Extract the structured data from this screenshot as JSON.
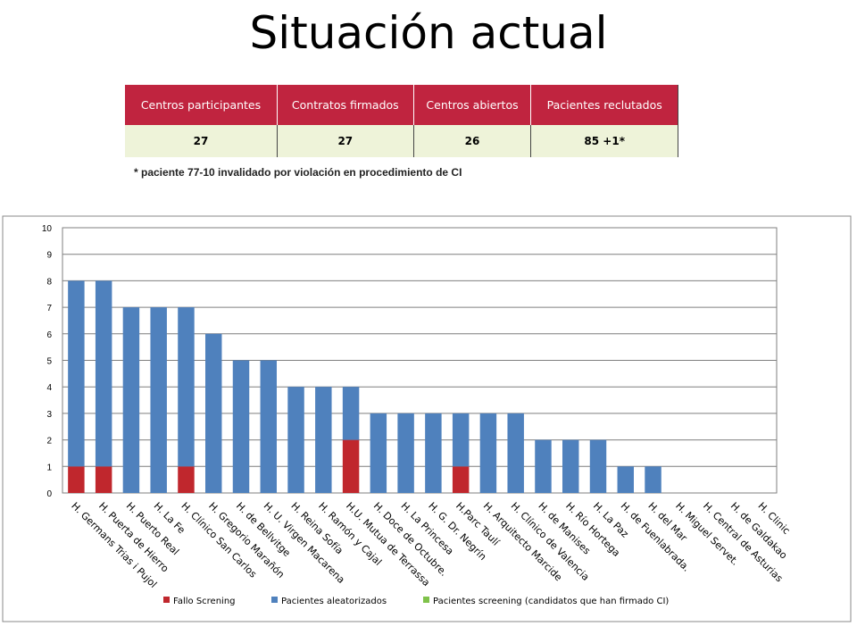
{
  "page": {
    "title": "Situación actual"
  },
  "summary_table": {
    "headers": [
      "Centros participantes",
      "Contratos firmados",
      "Centros abiertos",
      "Pacientes reclutados"
    ],
    "values": [
      "27",
      "27",
      "26",
      "85 +1*"
    ]
  },
  "footnote": "* paciente 77-10 invalidado por violación en procedimiento de CI",
  "chart_data": {
    "type": "bar",
    "stacked": true,
    "title": "",
    "xlabel": "",
    "ylabel": "",
    "ylim": [
      0,
      10
    ],
    "yticks": [
      0,
      1,
      2,
      3,
      4,
      5,
      6,
      7,
      8,
      9,
      10
    ],
    "grid": true,
    "legend_position": "bottom",
    "categories": [
      "H. Germans Trias i Pujol",
      "H. Puerta de Hierro",
      "H. Puerto Real",
      "H. La Fe",
      "H. Clínico San Carlos",
      "H. Gregorio Marañón",
      "H. de Bellvitge",
      "H. U. Virgen Macarena",
      "H. Reina Sofía",
      "H. Ramón y Cajal",
      "H.U. Mutua de Terrassa",
      "H. Doce de Octubre.",
      "H. La Princesa",
      "H. G. Dr. Negrín",
      "H.Parc Taulí",
      "H. Arquitecto Marcide",
      "H. Clínico de Valencia",
      "H. de Manises",
      "H. Río Hortega",
      "H. La Paz",
      "H. de Fuenlabrada.",
      "H. del Mar",
      "H. Miguel Servet.",
      "H. Central de Asturias",
      "H. de Galdakao",
      "H. Clinic"
    ],
    "series": [
      {
        "name": "Fallo Screning",
        "color": "#c0272d",
        "values": [
          1,
          1,
          0,
          0,
          1,
          0,
          0,
          0,
          0,
          0,
          2,
          0,
          0,
          0,
          1,
          0,
          0,
          0,
          0,
          0,
          0,
          0,
          0,
          0,
          0,
          0
        ]
      },
      {
        "name": "Pacientes aleatorizados",
        "color": "#4f81bd",
        "values": [
          7,
          7,
          7,
          7,
          6,
          6,
          5,
          5,
          4,
          4,
          2,
          3,
          3,
          3,
          2,
          3,
          3,
          2,
          2,
          2,
          1,
          1,
          0,
          0,
          0,
          0
        ]
      },
      {
        "name": "Pacientes screening (candidatos que han firmado CI)",
        "color": "#7fc24a",
        "values": [
          0,
          0,
          0,
          0,
          0,
          0,
          0,
          0,
          0,
          0,
          0,
          0,
          0,
          0,
          0,
          0,
          0,
          0,
          0,
          0,
          0,
          0,
          0,
          0,
          0,
          0
        ]
      }
    ]
  }
}
